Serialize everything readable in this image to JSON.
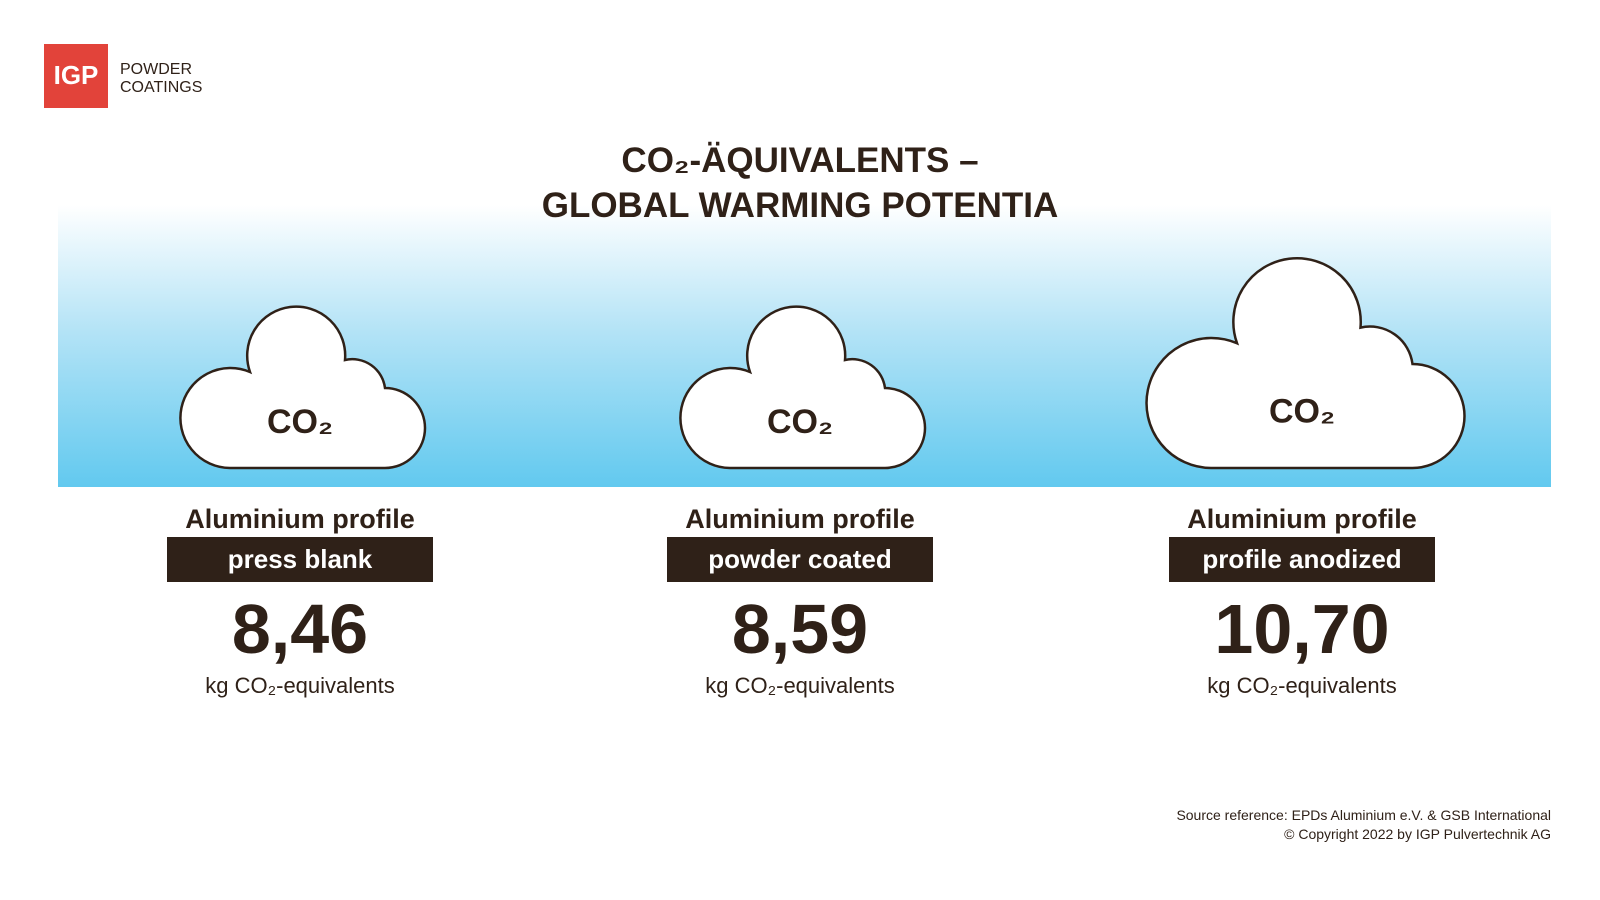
{
  "logo": {
    "mark": "IGP",
    "line1": "POWDER",
    "line2": "COATINGS"
  },
  "title": {
    "line1": "CO₂-ÄQUIVALENTS –",
    "line2": "GLOBAL WARMING POTENTIA"
  },
  "items": [
    {
      "cloud_label": "CO₂",
      "heading": "Aluminium profile",
      "variant": "press blank",
      "value": "8,46",
      "unit": "kg CO₂-equivalents"
    },
    {
      "cloud_label": "CO₂",
      "heading": "Aluminium profile",
      "variant": "powder coated",
      "value": "8,59",
      "unit": "kg CO₂-equivalents"
    },
    {
      "cloud_label": "CO₂",
      "heading": "Aluminium profile",
      "variant": "profile anodized",
      "value": "10,70",
      "unit": "kg CO₂-equivalents"
    }
  ],
  "footer": {
    "source": "Source reference: EPDs Aluminium e.V. & GSB International",
    "copyright": "© Copyright 2022 by IGP Pulvertechnik AG"
  }
}
